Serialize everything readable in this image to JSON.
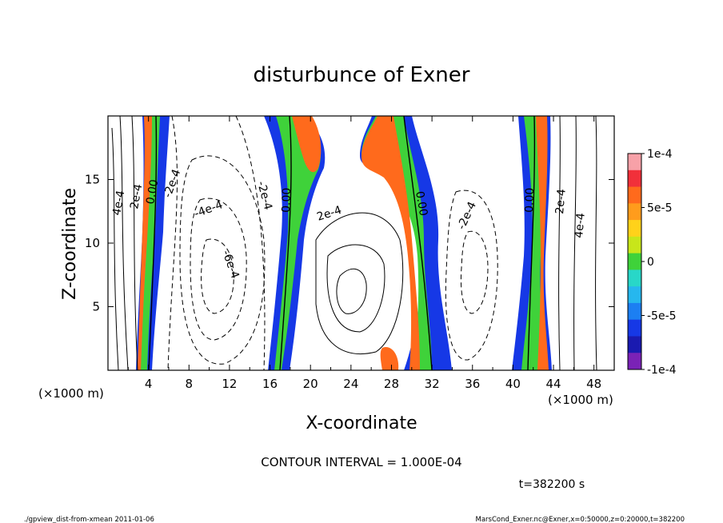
{
  "chart_data": {
    "type": "contour",
    "title": "disturbunce of Exner",
    "xlabel": "X-coordinate",
    "ylabel": "Z-coordinate",
    "xunit": "(×1000 m)",
    "yunit": "(×1000 m)",
    "xlim": [
      0,
      50
    ],
    "ylim": [
      0,
      20
    ],
    "xticks": [
      "4",
      "8",
      "12",
      "16",
      "20",
      "24",
      "28",
      "32",
      "36",
      "40",
      "44",
      "48"
    ],
    "yticks": [
      "5",
      "10",
      "15"
    ],
    "colorbar": {
      "ticks": [
        "1e-4",
        "5e-5",
        "0",
        "-5e-5",
        "-1e-4"
      ],
      "colors": [
        "#f7a1a8",
        "#f1303a",
        "#ff6a1c",
        "#ff9c1c",
        "#ffd21a",
        "#c8e61a",
        "#3fd23a",
        "#28d7c8",
        "#26b7ee",
        "#1c7ff2",
        "#1638e6",
        "#1a1ab0",
        "#7a22b6"
      ]
    },
    "contour_labels": [
      "4e-4",
      "2e-4",
      "0.00",
      "-2e-4",
      "-4e-4",
      "-6e-4",
      "-2e-4",
      "0.00",
      "2e-4",
      "0.00",
      "-2e-4",
      "0.00",
      "2e-4",
      "4e-4"
    ],
    "contour_interval_text": "CONTOUR INTERVAL = 1.000E-04",
    "time_text": "t=382200 s"
  },
  "footer": {
    "left": "./gpview_dist-from-xmean  2011-01-06",
    "right": "MarsCond_Exner.nc@Exner,x=0:50000,z=0:20000,t=382200"
  }
}
